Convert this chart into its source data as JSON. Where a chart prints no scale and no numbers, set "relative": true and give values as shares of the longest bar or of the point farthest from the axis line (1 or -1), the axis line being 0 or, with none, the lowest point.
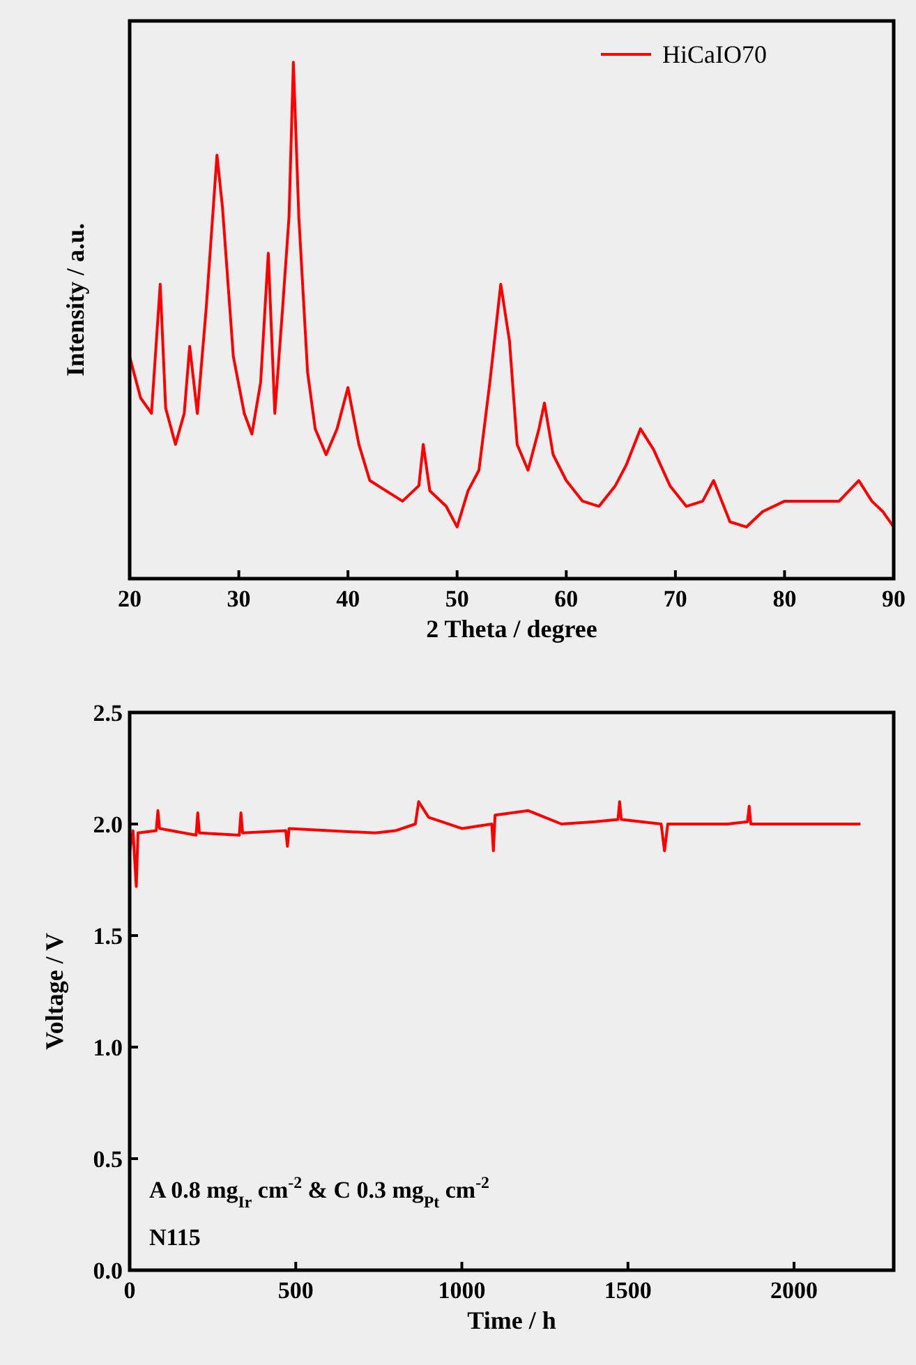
{
  "chart_data": [
    {
      "type": "line",
      "xlabel": "2 Theta / degree",
      "ylabel": "Intensity / a.u.",
      "relative": true,
      "xlim": [
        20,
        90
      ],
      "xticks": [
        20,
        30,
        40,
        50,
        60,
        70,
        80,
        90
      ],
      "tick_labels": "x",
      "legend": "top right",
      "series": [
        {
          "name": "HiCaIO70",
          "color": "#ff0000",
          "x": [
            20,
            21,
            22,
            22.8,
            23.3,
            24.2,
            25,
            25.5,
            26.2,
            27,
            28,
            28.5,
            29.5,
            30.5,
            31.2,
            32,
            32.7,
            33.3,
            34,
            34.6,
            35,
            35.5,
            36.3,
            37,
            38,
            39,
            40,
            41,
            42,
            43.5,
            45,
            46.5,
            46.9,
            47.5,
            49,
            50,
            51,
            52,
            53,
            54,
            54.8,
            55.5,
            56.5,
            57.5,
            58,
            58.8,
            60,
            61.5,
            63,
            64.5,
            65.5,
            66.8,
            68,
            69.5,
            71,
            72.5,
            73.5,
            75,
            76.5,
            78,
            80,
            82,
            83.5,
            85,
            86.8,
            88,
            89,
            90
          ],
          "values": [
            0.43,
            0.35,
            0.32,
            0.57,
            0.33,
            0.26,
            0.32,
            0.45,
            0.32,
            0.52,
            0.82,
            0.72,
            0.43,
            0.32,
            0.28,
            0.38,
            0.63,
            0.32,
            0.52,
            0.7,
            1,
            0.7,
            0.4,
            0.29,
            0.24,
            0.29,
            0.37,
            0.26,
            0.19,
            0.17,
            0.15,
            0.18,
            0.26,
            0.17,
            0.14,
            0.1,
            0.17,
            0.21,
            0.38,
            0.57,
            0.46,
            0.26,
            0.21,
            0.29,
            0.34,
            0.24,
            0.19,
            0.15,
            0.14,
            0.18,
            0.22,
            0.29,
            0.25,
            0.18,
            0.14,
            0.15,
            0.19,
            0.11,
            0.1,
            0.13,
            0.15,
            0.15,
            0.15,
            0.15,
            0.19,
            0.15,
            0.13,
            0.1
          ]
        }
      ]
    },
    {
      "type": "line",
      "xlabel": "Time / h",
      "ylabel": "Voltage / V",
      "xlim": [
        0,
        2300
      ],
      "xticks": [
        0,
        500,
        1000,
        1500,
        2000
      ],
      "ylim": [
        0,
        2.5
      ],
      "yticks": [
        {
          "value": 0,
          "label": "0.0"
        },
        {
          "value": 0.5,
          "label": "0.5"
        },
        {
          "value": 1,
          "label": "1.0"
        },
        {
          "value": 1.5,
          "label": "1.5"
        },
        {
          "value": 2,
          "label": "2.0"
        },
        {
          "value": 2.5,
          "label": "2.5"
        }
      ],
      "annotations": [
        "A 0.8 mg$_{Ir}$ cm$^{-2}$ & C 0.3 mg$_{Pt}$ cm$^{-2}$",
        "N115"
      ],
      "series": [
        {
          "color": "#ff0000",
          "x": [
            0,
            10,
            20,
            25,
            80,
            85,
            90,
            200,
            205,
            210,
            330,
            335,
            340,
            470,
            475,
            480,
            600,
            740,
            800,
            860,
            870,
            900,
            1000,
            1090,
            1095,
            1100,
            1200,
            1300,
            1400,
            1470,
            1475,
            1480,
            1600,
            1610,
            1620,
            1800,
            1860,
            1865,
            1870,
            2000,
            2200
          ],
          "values": [
            1.88,
            1.97,
            1.72,
            1.96,
            1.97,
            2.06,
            1.98,
            1.95,
            2.05,
            1.96,
            1.95,
            2.05,
            1.96,
            1.97,
            1.9,
            1.98,
            1.97,
            1.96,
            1.97,
            2.0,
            2.1,
            2.03,
            1.98,
            2.0,
            1.88,
            2.04,
            2.06,
            2.0,
            2.01,
            2.02,
            2.1,
            2.02,
            2.0,
            1.88,
            2.0,
            2.0,
            2.01,
            2.08,
            2.0,
            2.0,
            2.0
          ]
        }
      ]
    }
  ]
}
